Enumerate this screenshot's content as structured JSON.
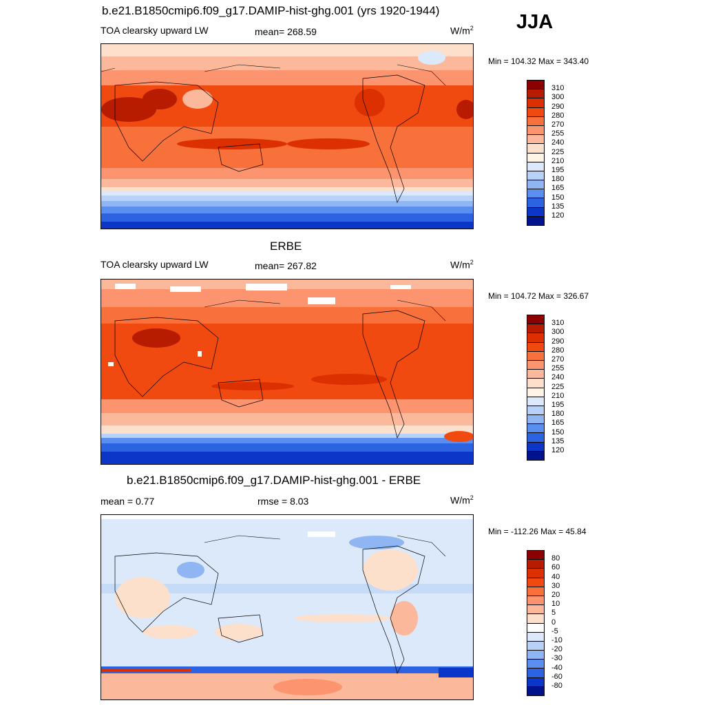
{
  "season": "JJA",
  "panel1": {
    "title": "b.e21.B1850cmip6.f09_g17.DAMIP-hist-ghg.001 (yrs 1920-1944)",
    "variable": "TOA clearsky upward LW",
    "mean": "mean= 268.59",
    "units": "W/m",
    "units_exp": "2",
    "minmax": "Min = 104.32 Max = 343.40"
  },
  "panel2": {
    "title": "ERBE",
    "variable": "TOA clearsky upward LW",
    "mean": "mean= 267.82",
    "units": "W/m",
    "units_exp": "2",
    "minmax": "Min = 104.72 Max = 326.67"
  },
  "panel3": {
    "title": "b.e21.B1850cmip6.f09_g17.DAMIP-hist-ghg.001 - ERBE",
    "mean": "mean =   0.77",
    "rmse": "rmse =   8.03",
    "units": "W/m",
    "units_exp": "2",
    "minmax": "Min = -112.26 Max =  45.84"
  },
  "colorbar_abs": {
    "labels": [
      "310",
      "300",
      "290",
      "280",
      "270",
      "255",
      "240",
      "225",
      "210",
      "195",
      "180",
      "165",
      "150",
      "135",
      "120"
    ],
    "colors": [
      "#8b0000",
      "#b81c00",
      "#dc3000",
      "#f04a10",
      "#f8703a",
      "#fc9470",
      "#fcb89a",
      "#fde0cc",
      "#fff4e6",
      "#dce9fb",
      "#b7d2f6",
      "#8fb6f2",
      "#5a8ff0",
      "#2b63e0",
      "#0b36c8",
      "#00128c"
    ]
  },
  "colorbar_diff": {
    "labels": [
      "80",
      "60",
      "40",
      "30",
      "20",
      "10",
      "5",
      "0",
      "-5",
      "-10",
      "-20",
      "-30",
      "-40",
      "-60",
      "-80"
    ],
    "colors": [
      "#8b0000",
      "#b81c00",
      "#dc3000",
      "#f04a10",
      "#f8703a",
      "#fc9470",
      "#fcb89a",
      "#fde0cc",
      "#ffffff",
      "#dce9fb",
      "#b7d2f6",
      "#8fb6f2",
      "#5a8ff0",
      "#2b63e0",
      "#0b36c8",
      "#00128c"
    ]
  }
}
